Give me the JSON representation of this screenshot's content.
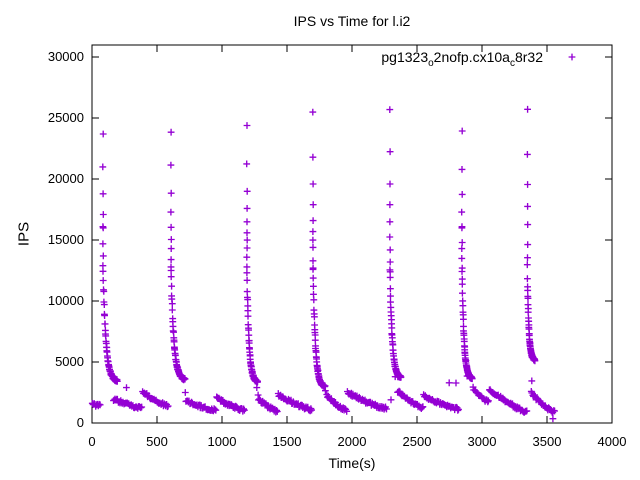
{
  "title": "IPS vs Time for l.i2",
  "legend": {
    "pre": "pg1323",
    "sub1": "o",
    "mid": "2nofp.cx10a",
    "sub2": "c",
    "post": "8r32",
    "marker": "+"
  },
  "colors": {
    "marker": "#9400D3",
    "axis": "#000000",
    "background": "#ffffff",
    "text": "#000000"
  },
  "chart_data": {
    "type": "scatter",
    "title": "IPS vs Time for l.i2",
    "xlabel": "Time(s)",
    "ylabel": "IPS",
    "xlim": [
      0,
      4000
    ],
    "ylim": [
      0,
      31000
    ],
    "x_ticks": [
      0,
      500,
      1000,
      1500,
      2000,
      2500,
      3000,
      3500,
      4000
    ],
    "y_ticks": [
      0,
      5000,
      10000,
      15000,
      20000,
      25000,
      30000
    ],
    "grid": false,
    "legend_position": "top-right-inside",
    "series_name": "pg1323_o2nofp.cx10a_c8r32",
    "marker": "+",
    "marker_color": "#9400D3",
    "description": "Seven periodic insert bursts: IPS spikes to ~24000-25700 then decays rapidly to ~3500, followed by a low slowly-declining tail near 1000-2600 until the next burst.",
    "initial_tail": {
      "t0": 2,
      "t1": 62,
      "y0": 1600,
      "y1": 1400
    },
    "bursts": [
      {
        "t": 85,
        "peak": 23700,
        "top": [
          23700,
          21000,
          18800,
          17100,
          16100,
          16000,
          14700,
          13700,
          12900
        ],
        "decay": {
          "from": 12400,
          "to": 3400,
          "len": 110
        },
        "tailA": {
          "t0": 165,
          "t1": 382,
          "y0": 1950,
          "y1": 1250
        },
        "tailB": {
          "t0": 390,
          "t1": 586,
          "y0": 2550,
          "y1": 1400
        }
      },
      {
        "t": 608,
        "peak": 23850,
        "top": [
          23850,
          21150,
          18850,
          17300,
          16050,
          15050,
          14300,
          13400,
          12800
        ],
        "decay": {
          "from": 12400,
          "to": 3500,
          "len": 108
        },
        "tailA": {
          "t0": 722,
          "t1": 952,
          "y0": 1800,
          "y1": 1050
        },
        "tailB": {
          "t0": 958,
          "t1": 1172,
          "y0": 2050,
          "y1": 1050
        }
      },
      {
        "t": 1192,
        "peak": 24400,
        "top": [
          24400,
          21250,
          19000,
          17600,
          16500,
          15600,
          15000,
          14350,
          13600,
          12800
        ],
        "decay": {
          "from": 12300,
          "to": 3300,
          "len": 82
        },
        "tailA": {
          "t0": 1282,
          "t1": 1426,
          "y0": 1950,
          "y1": 950
        },
        "tailB": {
          "t0": 1432,
          "t1": 1690,
          "y0": 2350,
          "y1": 1100
        }
      },
      {
        "t": 1700,
        "peak": 25500,
        "top": [
          25500,
          21800,
          19600,
          17900,
          16600,
          15700,
          15000,
          14400,
          13300,
          12600
        ],
        "decay": {
          "from": 12500,
          "to": 2900,
          "len": 92
        },
        "tailA": {
          "t0": 1805,
          "t1": 1958,
          "y0": 2300,
          "y1": 1050
        },
        "tailB": {
          "t0": 1965,
          "t1": 2265,
          "y0": 2500,
          "y1": 1200
        }
      },
      {
        "t": 2292,
        "peak": 25700,
        "top": [
          25700,
          22250,
          19600,
          17900,
          16500,
          15250,
          14200,
          13200,
          12400
        ],
        "decay": {
          "from": 12400,
          "to": 3700,
          "len": 85
        },
        "tailA": {
          "t0": 2350,
          "t1": 2545,
          "y0": 2600,
          "y1": 1250
        },
        "tailB": {
          "t0": 2552,
          "t1": 2820,
          "y0": 2250,
          "y1": 1150
        }
      },
      {
        "t": 2846,
        "peak": 23950,
        "top": [
          23950,
          20800,
          18750,
          17300,
          16100,
          16000,
          14800,
          14300,
          13500,
          12700
        ],
        "decay": {
          "from": 12400,
          "to": 3600,
          "len": 78
        },
        "tailA": {
          "t0": 2930,
          "t1": 3050,
          "y0": 2900,
          "y1": 1700
        },
        "tailB": {
          "t0": 3056,
          "t1": 3345,
          "y0": 2750,
          "y1": 950
        }
      },
      {
        "t": 3350,
        "peak": 25730,
        "top": [
          25730,
          22030,
          19560,
          17760,
          16270,
          14630,
          13560,
          12980
        ],
        "decay": {
          "from": 11900,
          "to": 5100,
          "len": 58
        },
        "tailA": {
          "t0": 3378,
          "t1": 3472,
          "y0": 2550,
          "y1": 1500
        },
        "tailB": {
          "t0": 3475,
          "t1": 3558,
          "y0": 1450,
          "y1": 900
        }
      }
    ],
    "extra_points": [
      [
        265,
        2900
      ],
      [
        718,
        2500
      ],
      [
        1268,
        2900
      ],
      [
        1278,
        2300
      ],
      [
        1795,
        2650
      ],
      [
        2300,
        1900
      ],
      [
        2332,
        3800
      ],
      [
        2352,
        3780
      ],
      [
        2748,
        3300
      ],
      [
        2800,
        3280
      ],
      [
        2885,
        3850
      ],
      [
        3383,
        3450
      ],
      [
        3545,
        350
      ]
    ]
  }
}
